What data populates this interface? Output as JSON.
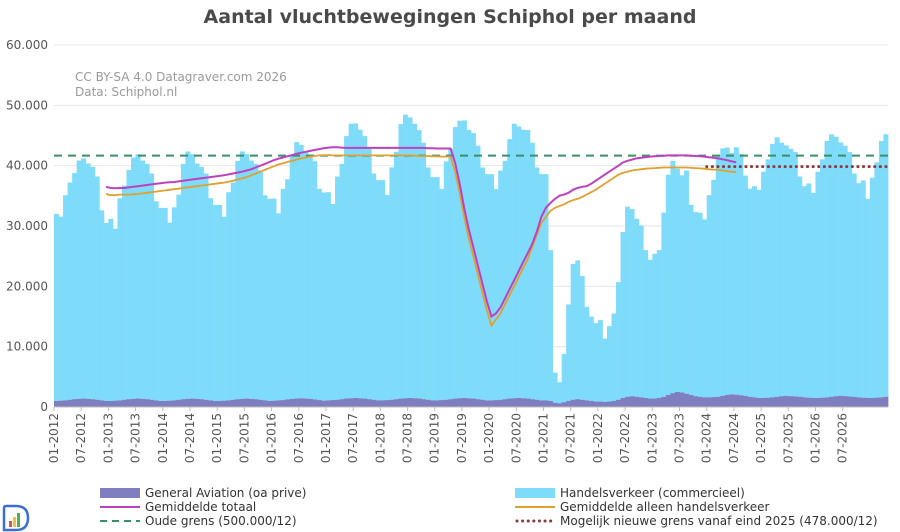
{
  "title": "Aantal vluchtbewegingen Schiphol per maand",
  "credits": [
    "CC BY-SA 4.0 Datagraver.com 2026",
    "Data: Schiphol.nl"
  ],
  "colors": {
    "commercial": "#7fdbfa",
    "general_aviation": "#7f7fbf",
    "average_total": "#bf40bf",
    "average_commercial": "#e0a030",
    "old_limit": "#3a8f6a",
    "new_limit": "#8b3a3a",
    "grid": "#e6e6e6"
  },
  "legend": [
    {
      "label": "General Aviation (oa prive)",
      "swatch": "bar",
      "series": "general_aviation"
    },
    {
      "label": "Handelsverkeer (commercieel)",
      "swatch": "bar",
      "series": "commercial"
    },
    {
      "label": "Gemiddelde totaal",
      "swatch": "line",
      "series": "average_total"
    },
    {
      "label": "Gemiddelde alleen handelsverkeer",
      "swatch": "line",
      "series": "average_commercial"
    },
    {
      "label": "Oude grens (500.000/12)",
      "swatch": "dash",
      "series": "old_limit"
    },
    {
      "label": "Mogelijk nieuwe grens vanaf eind 2025 (478.000/12)",
      "swatch": "dot",
      "series": "new_limit"
    }
  ],
  "chart_data": {
    "type": "bar",
    "title": "Aantal vluchtbewegingen Schiphol per maand",
    "x_start": "01-2012",
    "x_end": "07-2026",
    "ylim": [
      0,
      60000
    ],
    "y_ticks": [
      0,
      10000,
      20000,
      30000,
      40000,
      50000,
      60000
    ],
    "y_tick_labels": [
      "0",
      "10.000",
      "20.000",
      "30.000",
      "40.000",
      "50.000",
      "60.000"
    ],
    "x_tick_labels": [
      "01-2012",
      "07-2012",
      "01-2013",
      "07-2013",
      "01-2014",
      "07-2014",
      "01-2015",
      "07-2015",
      "01-2016",
      "07-2016",
      "01-2017",
      "07-2017",
      "01-2018",
      "07-2018",
      "01-2019",
      "07-2019",
      "01-2020",
      "07-2020",
      "01-2021",
      "07-2021",
      "01-2022",
      "07-2022",
      "01-2023",
      "07-2023",
      "01-2024",
      "07-2024",
      "01-2025",
      "07-2025",
      "01-2026",
      "07-2026"
    ],
    "grid": true,
    "legend_position": "bottom",
    "series": [
      {
        "name": "Handelsverkeer (commercieel)",
        "type": "bar",
        "key": "commercial",
        "values": [
          31000,
          30500,
          34000,
          36000,
          37500,
          39500,
          39800,
          39000,
          38500,
          37000,
          31500,
          29500,
          30200,
          28500,
          33500,
          35500,
          38000,
          40000,
          40500,
          39500,
          39000,
          37500,
          33000,
          32000,
          32000,
          29500,
          32000,
          34000,
          39000,
          41000,
          40500,
          39000,
          38500,
          37500,
          33500,
          32500,
          32500,
          30500,
          34500,
          36000,
          39500,
          41000,
          40500,
          39500,
          39000,
          38000,
          34000,
          33500,
          33500,
          31000,
          35000,
          36500,
          40500,
          42500,
          42000,
          41000,
          40500,
          39500,
          35000,
          34500,
          34500,
          32500,
          37000,
          39000,
          43500,
          45500,
          45500,
          44500,
          43500,
          41500,
          37500,
          36500,
          36500,
          34000,
          38500,
          41000,
          45500,
          47000,
          46500,
          45500,
          44500,
          42500,
          38500,
          37000,
          37000,
          35000,
          39500,
          41500,
          45000,
          46000,
          46000,
          44500,
          44000,
          42000,
          38500,
          37500,
          37500,
          35000,
          38000,
          39500,
          43000,
          45500,
          45000,
          44500,
          44500,
          42500,
          38500,
          37500,
          37500,
          25000,
          5000,
          3500,
          8000,
          16000,
          22500,
          23000,
          20500,
          15500,
          14000,
          13000,
          13500,
          10500,
          12500,
          14500,
          19500,
          27500,
          31500,
          31000,
          29500,
          28500,
          24500,
          23000,
          24000,
          24500,
          30500,
          36500,
          38500,
          37000,
          36000,
          37000,
          31500,
          30500,
          30500,
          29500,
          33500,
          36000,
          40000,
          41000,
          41000,
          40000,
          41000,
          40000,
          36500,
          34500,
          35000,
          34500,
          37500,
          39500,
          42000,
          43000,
          42000,
          41500,
          41000,
          40500,
          36500,
          35000,
          35500,
          34000,
          37500,
          39500,
          42500,
          43500,
          43000,
          42000,
          41500,
          40500,
          37000,
          35500,
          36000,
          33000,
          36500,
          39000,
          42500,
          43500
        ]
      },
      {
        "name": "General Aviation (oa prive)",
        "type": "bar",
        "key": "general_aviation",
        "values": [
          1000,
          1050,
          1100,
          1200,
          1300,
          1350,
          1400,
          1350,
          1300,
          1200,
          1100,
          1000,
          1000,
          1050,
          1100,
          1200,
          1300,
          1350,
          1400,
          1350,
          1300,
          1200,
          1100,
          1000,
          1000,
          1050,
          1100,
          1200,
          1300,
          1350,
          1400,
          1350,
          1300,
          1200,
          1100,
          1000,
          1000,
          1050,
          1100,
          1200,
          1300,
          1350,
          1400,
          1350,
          1300,
          1200,
          1100,
          1000,
          1050,
          1100,
          1150,
          1250,
          1350,
          1400,
          1450,
          1400,
          1350,
          1250,
          1150,
          1050,
          1100,
          1150,
          1200,
          1300,
          1400,
          1450,
          1500,
          1450,
          1400,
          1300,
          1200,
          1100,
          1100,
          1150,
          1200,
          1300,
          1400,
          1450,
          1500,
          1450,
          1400,
          1300,
          1200,
          1100,
          1100,
          1150,
          1200,
          1300,
          1400,
          1450,
          1500,
          1450,
          1400,
          1300,
          1200,
          1100,
          1100,
          1150,
          1200,
          1300,
          1400,
          1450,
          1500,
          1450,
          1400,
          1300,
          1200,
          1100,
          1100,
          1000,
          700,
          600,
          800,
          1000,
          1200,
          1300,
          1200,
          1100,
          1000,
          900,
          900,
          850,
          900,
          1000,
          1200,
          1500,
          1700,
          1800,
          1700,
          1600,
          1500,
          1400,
          1400,
          1500,
          1700,
          2000,
          2300,
          2500,
          2400,
          2200,
          2000,
          1800,
          1700,
          1600,
          1600,
          1650,
          1700,
          1850,
          2000,
          2100,
          2050,
          1950,
          1850,
          1700,
          1600,
          1500,
          1500,
          1550,
          1600,
          1700,
          1800,
          1850,
          1800,
          1750,
          1700,
          1600,
          1550,
          1500,
          1500,
          1550,
          1600,
          1700,
          1800,
          1850,
          1800,
          1750,
          1700,
          1600,
          1550,
          1500,
          1500,
          1550,
          1600,
          1700,
          1800,
          1850
        ]
      },
      {
        "name": "Gemiddelde totaal",
        "type": "line",
        "key": "average_total",
        "start_index": 11,
        "values": [
          36500,
          36300,
          36250,
          36300,
          36300,
          36400,
          36500,
          36600,
          36700,
          36800,
          36900,
          37000,
          37100,
          37200,
          37250,
          37300,
          37400,
          37500,
          37600,
          37700,
          37800,
          37900,
          38000,
          38100,
          38200,
          38300,
          38400,
          38550,
          38700,
          38850,
          39000,
          39200,
          39400,
          39700,
          40000,
          40300,
          40600,
          40900,
          41150,
          41350,
          41550,
          41750,
          41950,
          42150,
          42300,
          42450,
          42600,
          42750,
          42900,
          43000,
          43050,
          43050,
          43000,
          42950,
          42950,
          42950,
          42950,
          42950,
          42950,
          42950,
          42950,
          42950,
          42950,
          42950,
          42950,
          42950,
          42950,
          42950,
          42950,
          42950,
          42950,
          42900,
          42900,
          42850,
          42850,
          42850,
          42850,
          40500,
          37000,
          33000,
          29500,
          26500,
          23500,
          20500,
          17500,
          15000,
          15500,
          16500,
          18000,
          19500,
          21000,
          22500,
          24000,
          25500,
          27000,
          29000,
          31500,
          33000,
          33800,
          34500,
          35000,
          35200,
          35500,
          36000,
          36300,
          36500,
          36600,
          37000,
          37500,
          38000,
          38500,
          39000,
          39500,
          40000,
          40500,
          40800,
          41000,
          41200,
          41300,
          41400,
          41500,
          41550,
          41600,
          41650,
          41700,
          41700,
          41700,
          41700,
          41700,
          41650,
          41600,
          41550,
          41500,
          41400,
          41300,
          41200,
          41050,
          40900,
          40700,
          40550
        ]
      },
      {
        "name": "Gemiddelde alleen handelsverkeer",
        "type": "line",
        "key": "average_commercial",
        "start_index": 11,
        "values": [
          35300,
          35100,
          35100,
          35200,
          35200,
          35200,
          35250,
          35300,
          35400,
          35500,
          35600,
          35700,
          35800,
          35900,
          36000,
          36100,
          36200,
          36300,
          36400,
          36500,
          36600,
          36700,
          36800,
          36900,
          37000,
          37100,
          37200,
          37350,
          37500,
          37700,
          37900,
          38100,
          38400,
          38700,
          39000,
          39300,
          39600,
          39900,
          40200,
          40400,
          40600,
          40800,
          41000,
          41200,
          41350,
          41500,
          41600,
          41700,
          41750,
          41750,
          41700,
          41700,
          41700,
          41700,
          41700,
          41700,
          41700,
          41700,
          41700,
          41700,
          41700,
          41700,
          41700,
          41700,
          41700,
          41700,
          41700,
          41700,
          41650,
          41600,
          41600,
          41600,
          41550,
          41550,
          41500,
          41500,
          41500,
          39000,
          35500,
          31500,
          28000,
          25000,
          22000,
          19000,
          16000,
          13500,
          14500,
          15500,
          17000,
          18500,
          20000,
          21500,
          23000,
          24500,
          26500,
          28500,
          30500,
          31500,
          32500,
          33000,
          33300,
          33600,
          34000,
          34300,
          34500,
          34800,
          35200,
          35600,
          36000,
          36500,
          37000,
          37500,
          38000,
          38500,
          38800,
          39000,
          39200,
          39300,
          39400,
          39500,
          39550,
          39600,
          39650,
          39700,
          39700,
          39700,
          39700,
          39700,
          39700,
          39650,
          39600,
          39550,
          39500,
          39400,
          39350,
          39300,
          39200,
          39100,
          39000,
          38900
        ]
      },
      {
        "name": "Oude grens (500.000/12)",
        "type": "line",
        "key": "old_limit",
        "constant": 41667
      },
      {
        "name": "Mogelijk nieuwe grens vanaf eind 2025 (478.000/12)",
        "type": "line",
        "key": "new_limit",
        "constant": 39833,
        "start_label": "01-2024"
      }
    ]
  }
}
